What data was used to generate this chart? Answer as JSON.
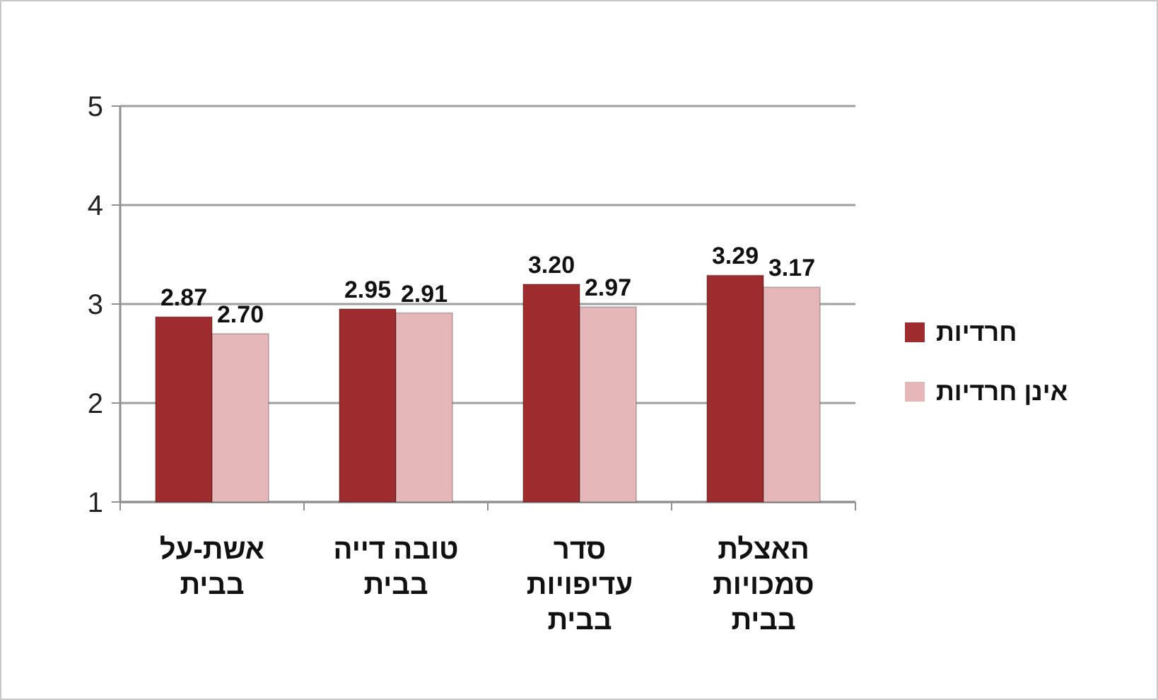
{
  "chart_data": {
    "type": "bar",
    "categories": [
      "אשת-על בבית",
      "טובה דייה בבית",
      "סדר עדיפויות בבית",
      "האצלת סמכויות בבית"
    ],
    "series": [
      {
        "name": "חרדיות",
        "color": "#9e2b2e",
        "values": [
          2.87,
          2.95,
          3.2,
          3.29
        ],
        "value_labels": [
          "2.87",
          "2.95",
          "3.20",
          "3.29"
        ]
      },
      {
        "name": "אינן חרדיות",
        "color": "#e6b7b8",
        "values": [
          2.7,
          2.91,
          2.97,
          3.17
        ],
        "value_labels": [
          "2.70",
          "2.91",
          "2.97",
          "3.17"
        ]
      }
    ],
    "ylim": [
      1,
      5
    ],
    "yticks": [
      1,
      2,
      3,
      4,
      5
    ],
    "grid": "y",
    "legend": "right"
  }
}
